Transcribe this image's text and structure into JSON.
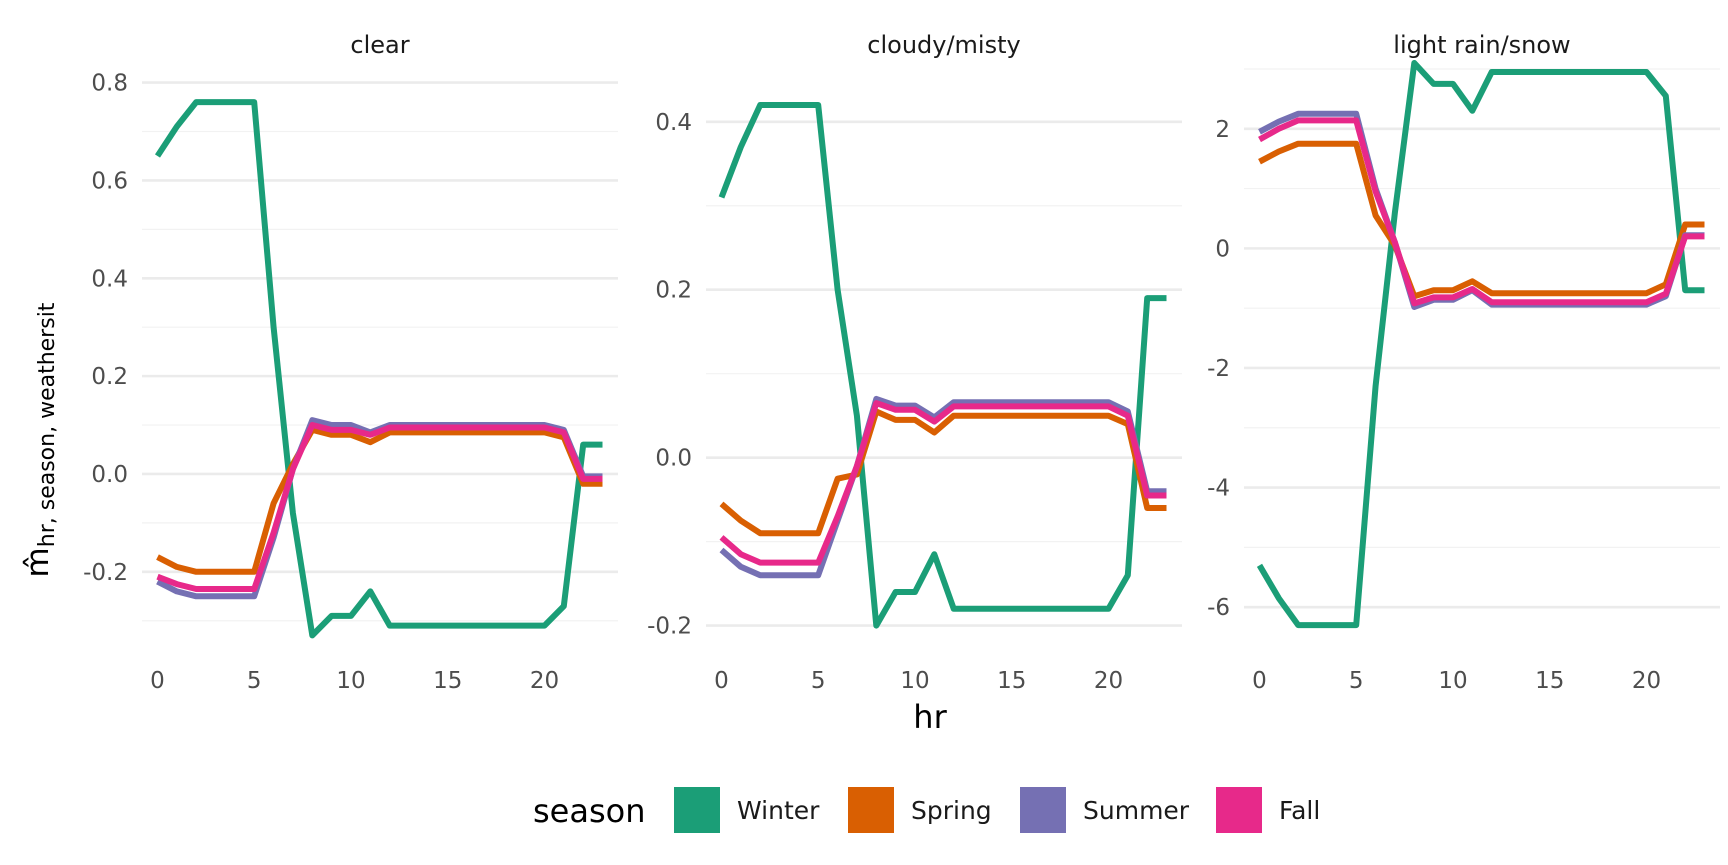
{
  "chart_data": {
    "type": "line",
    "xlabel": "hr",
    "ylabel": {
      "base": "m̂",
      "subscript": "hr, season, weathersit"
    },
    "legend": {
      "title": "season",
      "position": "bottom"
    },
    "grid": true,
    "x": [
      0,
      1,
      2,
      3,
      4,
      5,
      6,
      7,
      8,
      9,
      10,
      11,
      12,
      13,
      14,
      15,
      16,
      17,
      18,
      19,
      20,
      21,
      22,
      23
    ],
    "x_ticks": [
      0,
      5,
      10,
      15,
      20
    ],
    "series_colors": {
      "Winter": "#1b9e77",
      "Spring": "#d95f02",
      "Summer": "#7570b3",
      "Fall": "#e7298a"
    },
    "panels": [
      {
        "title": "clear",
        "ylim": [
          -0.37,
          0.84
        ],
        "y_ticks": [
          0.8,
          0.6,
          0.4,
          0.2,
          0.0,
          -0.2
        ],
        "y_tick_labels": [
          "0.8",
          "0.6",
          "0.4",
          "0.2",
          "0.0",
          "-0.2"
        ],
        "series": [
          {
            "name": "Winter",
            "values": [
              0.65,
              0.71,
              0.76,
              0.76,
              0.76,
              0.76,
              0.3,
              -0.08,
              -0.33,
              -0.29,
              -0.29,
              -0.24,
              -0.31,
              -0.31,
              -0.31,
              -0.31,
              -0.31,
              -0.31,
              -0.31,
              -0.31,
              -0.31,
              -0.27,
              0.06,
              0.06
            ]
          },
          {
            "name": "Spring",
            "values": [
              -0.17,
              -0.19,
              -0.2,
              -0.2,
              -0.2,
              -0.2,
              -0.06,
              0.02,
              0.09,
              0.08,
              0.08,
              0.065,
              0.085,
              0.085,
              0.085,
              0.085,
              0.085,
              0.085,
              0.085,
              0.085,
              0.085,
              0.075,
              -0.02,
              -0.02
            ]
          },
          {
            "name": "Summer",
            "values": [
              -0.22,
              -0.24,
              -0.25,
              -0.25,
              -0.25,
              -0.25,
              -0.13,
              0.01,
              0.11,
              0.1,
              0.1,
              0.085,
              0.1,
              0.1,
              0.1,
              0.1,
              0.1,
              0.1,
              0.1,
              0.1,
              0.1,
              0.09,
              -0.005,
              -0.005
            ]
          },
          {
            "name": "Fall",
            "values": [
              -0.21,
              -0.225,
              -0.235,
              -0.235,
              -0.235,
              -0.235,
              -0.12,
              0.01,
              0.1,
              0.09,
              0.09,
              0.08,
              0.095,
              0.095,
              0.095,
              0.095,
              0.095,
              0.095,
              0.095,
              0.095,
              0.095,
              0.085,
              -0.01,
              -0.01
            ]
          }
        ]
      },
      {
        "title": "cloudy/misty",
        "ylim": [
          -0.235,
          0.47
        ],
        "y_ticks": [
          0.4,
          0.2,
          0.0,
          -0.2
        ],
        "y_tick_labels": [
          "0.4",
          "0.2",
          "0.0",
          "-0.2"
        ],
        "series": [
          {
            "name": "Winter",
            "values": [
              0.31,
              0.37,
              0.42,
              0.42,
              0.42,
              0.42,
              0.2,
              0.05,
              -0.2,
              -0.16,
              -0.16,
              -0.115,
              -0.18,
              -0.18,
              -0.18,
              -0.18,
              -0.18,
              -0.18,
              -0.18,
              -0.18,
              -0.18,
              -0.14,
              0.19,
              0.19
            ]
          },
          {
            "name": "Spring",
            "values": [
              -0.055,
              -0.075,
              -0.09,
              -0.09,
              -0.09,
              -0.09,
              -0.025,
              -0.02,
              0.055,
              0.045,
              0.045,
              0.03,
              0.05,
              0.05,
              0.05,
              0.05,
              0.05,
              0.05,
              0.05,
              0.05,
              0.05,
              0.04,
              -0.06,
              -0.06
            ]
          },
          {
            "name": "Summer",
            "values": [
              -0.11,
              -0.13,
              -0.14,
              -0.14,
              -0.14,
              -0.14,
              -0.075,
              -0.01,
              0.07,
              0.062,
              0.062,
              0.048,
              0.066,
              0.066,
              0.066,
              0.066,
              0.066,
              0.066,
              0.066,
              0.066,
              0.066,
              0.055,
              -0.04,
              -0.04
            ]
          },
          {
            "name": "Fall",
            "values": [
              -0.095,
              -0.115,
              -0.125,
              -0.125,
              -0.125,
              -0.125,
              -0.07,
              -0.01,
              0.065,
              0.057,
              0.057,
              0.043,
              0.061,
              0.061,
              0.061,
              0.061,
              0.061,
              0.061,
              0.061,
              0.061,
              0.061,
              0.05,
              -0.045,
              -0.045
            ]
          }
        ]
      },
      {
        "title": "light rain/snow",
        "ylim": [
          -6.8,
          3.1
        ],
        "y_ticks": [
          2,
          0,
          -2,
          -4,
          -6
        ],
        "y_tick_labels": [
          "2",
          "0",
          "-2",
          "-4",
          "-6"
        ],
        "series": [
          {
            "name": "Winter",
            "values": [
              -5.3,
              -5.85,
              -6.3,
              -6.3,
              -6.3,
              -6.3,
              -2.3,
              0.6,
              3.1,
              2.75,
              2.75,
              2.3,
              2.95,
              2.95,
              2.95,
              2.95,
              2.95,
              2.95,
              2.95,
              2.95,
              2.95,
              2.55,
              -0.7,
              -0.7
            ]
          },
          {
            "name": "Spring",
            "values": [
              1.45,
              1.62,
              1.75,
              1.75,
              1.75,
              1.75,
              0.55,
              0.05,
              -0.8,
              -0.7,
              -0.7,
              -0.55,
              -0.75,
              -0.75,
              -0.75,
              -0.75,
              -0.75,
              -0.75,
              -0.75,
              -0.75,
              -0.75,
              -0.6,
              0.4,
              0.4
            ]
          },
          {
            "name": "Summer",
            "values": [
              1.95,
              2.12,
              2.25,
              2.25,
              2.25,
              2.25,
              1.0,
              0.1,
              -0.98,
              -0.86,
              -0.86,
              -0.7,
              -0.94,
              -0.94,
              -0.94,
              -0.94,
              -0.94,
              -0.94,
              -0.94,
              -0.94,
              -0.94,
              -0.8,
              0.22,
              0.22
            ]
          },
          {
            "name": "Fall",
            "values": [
              1.82,
              2.0,
              2.14,
              2.14,
              2.14,
              2.14,
              0.95,
              0.1,
              -0.92,
              -0.82,
              -0.82,
              -0.68,
              -0.9,
              -0.9,
              -0.9,
              -0.9,
              -0.9,
              -0.9,
              -0.9,
              -0.9,
              -0.9,
              -0.76,
              0.2,
              0.2
            ]
          }
        ]
      }
    ]
  }
}
